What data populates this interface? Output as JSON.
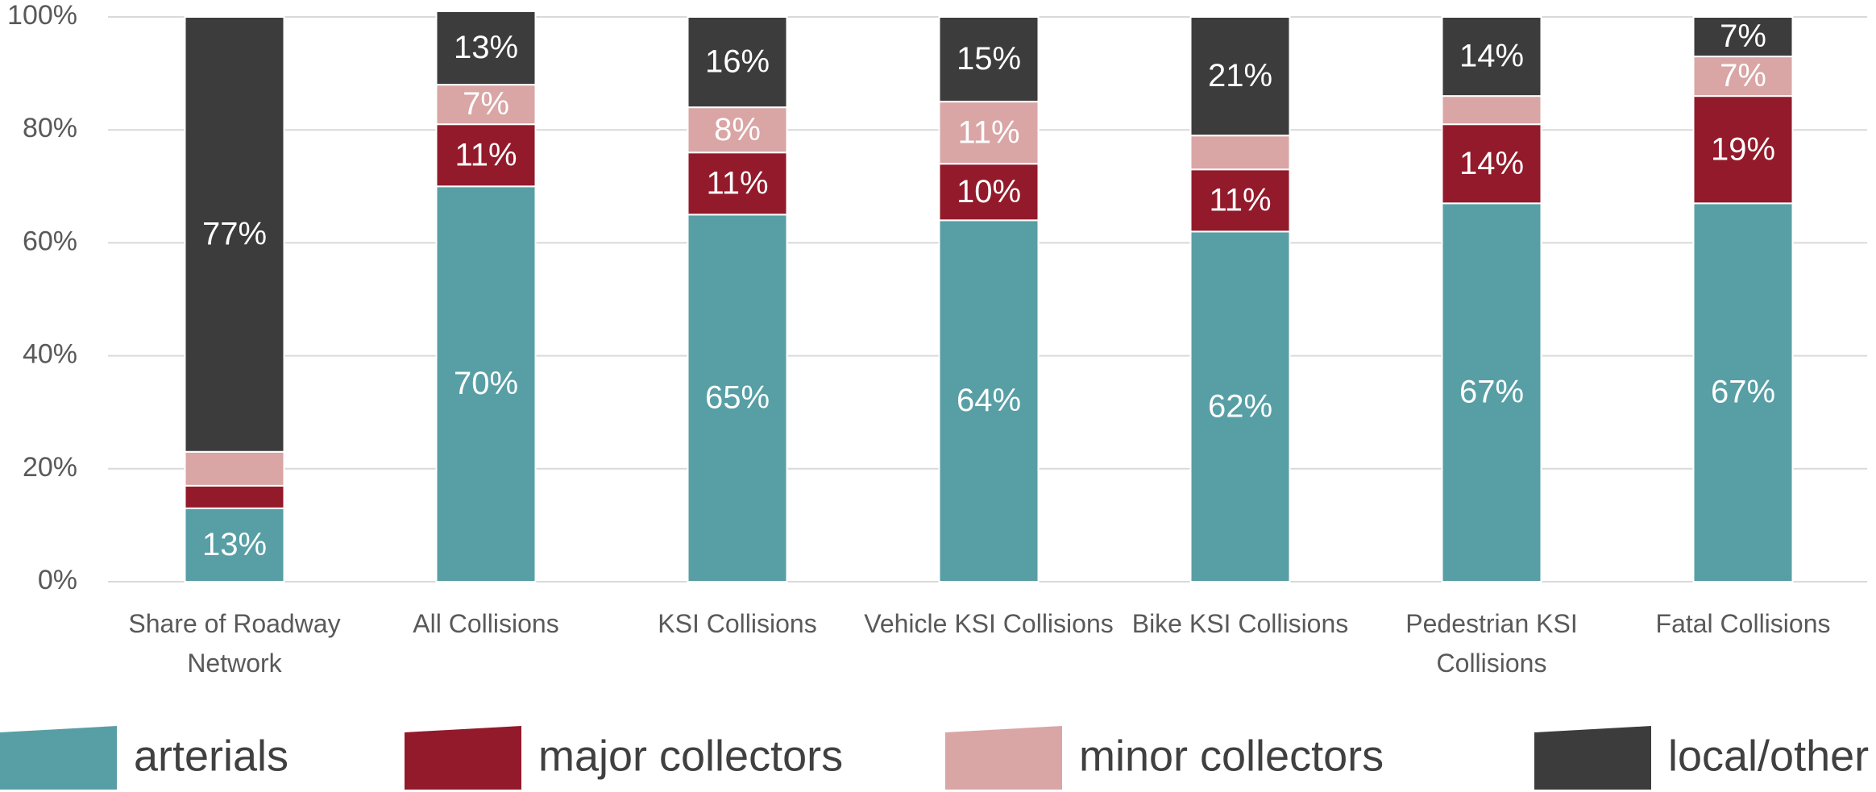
{
  "chart_data": {
    "type": "stacked_bar",
    "categories": [
      "Share of Roadway Network",
      "All Collisions",
      "KSI Collisions",
      "Vehicle KSI Collisions",
      "Bike KSI Collisions",
      "Pedestrian KSI Collisions",
      "Fatal Collisions"
    ],
    "series": [
      {
        "name": "arterials",
        "color": "#579fa5",
        "values": [
          13,
          70,
          65,
          64,
          62,
          67,
          67
        ],
        "value_labels": [
          "13%",
          "70%",
          "65%",
          "64%",
          "62%",
          "67%",
          "67%"
        ]
      },
      {
        "name": "major collectors",
        "color": "#921a2a",
        "values": [
          4,
          11,
          11,
          10,
          11,
          14,
          19
        ],
        "value_labels": [
          null,
          "11%",
          "11%",
          "10%",
          "11%",
          "14%",
          "19%"
        ]
      },
      {
        "name": "minor collectors",
        "color": "#d9a5a5",
        "values": [
          6,
          7,
          8,
          11,
          6,
          5,
          7
        ],
        "value_labels": [
          null,
          "7%",
          "8%",
          "11%",
          null,
          null,
          "7%"
        ]
      },
      {
        "name": "local/other",
        "color": "#3c3c3c",
        "values": [
          77,
          13,
          16,
          15,
          21,
          14,
          7
        ],
        "value_labels": [
          "77%",
          "13%",
          "16%",
          "15%",
          "21%",
          "14%",
          "7%"
        ]
      }
    ],
    "ylim": [
      0,
      100
    ],
    "yticks": [
      {
        "value": 0,
        "label": "0%"
      },
      {
        "value": 20,
        "label": "20%"
      },
      {
        "value": 40,
        "label": "40%"
      },
      {
        "value": 60,
        "label": "60%"
      },
      {
        "value": 80,
        "label": "80%"
      },
      {
        "value": 100,
        "label": "100%"
      }
    ],
    "grid": true,
    "legend": "bottom"
  }
}
